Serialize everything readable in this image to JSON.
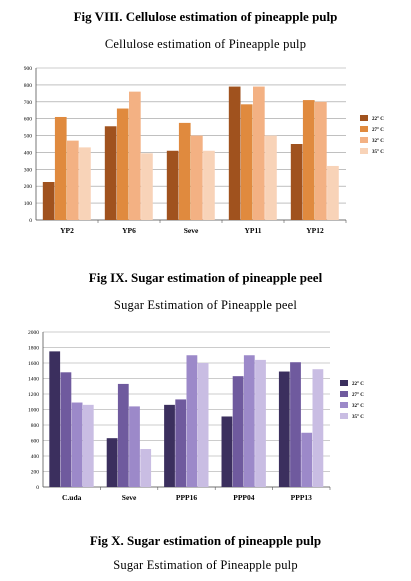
{
  "figures": [
    {
      "caption": "Fig VIII. Cellulose estimation of pineapple pulp",
      "title": "Cellulose estimation  of Pineapple pulp"
    },
    {
      "caption": "Fig IX. Sugar estimation of pineapple peel",
      "title": "Sugar Estimation of Pineapple peel"
    },
    {
      "caption": "Fig X. Sugar estimation of pineapple pulp",
      "title": "Sugar Estimation of Pineapple pulp"
    }
  ],
  "chart_data": [
    {
      "type": "bar",
      "title": "Cellulose estimation  of Pineapple pulp",
      "categories": [
        "YP2",
        "YP6",
        "Seve",
        "YP11",
        "YP12"
      ],
      "series": [
        {
          "name": "22° C",
          "color": "#a0521e",
          "values": [
            225,
            555,
            410,
            790,
            450
          ]
        },
        {
          "name": "27° C",
          "color": "#e08a3e",
          "values": [
            610,
            660,
            575,
            685,
            710
          ]
        },
        {
          "name": "32° C",
          "color": "#f3b183",
          "values": [
            470,
            760,
            500,
            790,
            700
          ]
        },
        {
          "name": "35° C",
          "color": "#f8d3b8",
          "values": [
            430,
            395,
            410,
            500,
            320
          ]
        }
      ],
      "ylim": [
        0,
        900
      ],
      "yticks": [
        "0",
        "100",
        "200",
        "300",
        "400",
        "500",
        "600",
        "700",
        "800",
        "900"
      ],
      "grid": true,
      "legend": "right"
    },
    {
      "type": "bar",
      "title": "Sugar Estimation of Pineapple peel",
      "categories": [
        "C.uda",
        "Seve",
        "PPP16",
        "PPP04",
        "PPP13"
      ],
      "series": [
        {
          "name": "22° C",
          "color": "#3b2f5e",
          "values": [
            1750,
            630,
            1060,
            910,
            1490
          ]
        },
        {
          "name": "27° C",
          "color": "#6f5a9e",
          "values": [
            1480,
            1330,
            1130,
            1430,
            1610
          ]
        },
        {
          "name": "32° C",
          "color": "#9c89c9",
          "values": [
            1090,
            1040,
            1700,
            1700,
            700
          ]
        },
        {
          "name": "35° C",
          "color": "#c9bde3",
          "values": [
            1060,
            490,
            1600,
            1640,
            1520
          ]
        }
      ],
      "ylim": [
        0,
        2000
      ],
      "yticks": [
        "0",
        "200",
        "400",
        "600",
        "800",
        "1000",
        "1200",
        "1400",
        "1600",
        "1800",
        "2000"
      ],
      "grid": true,
      "legend": "right"
    }
  ]
}
